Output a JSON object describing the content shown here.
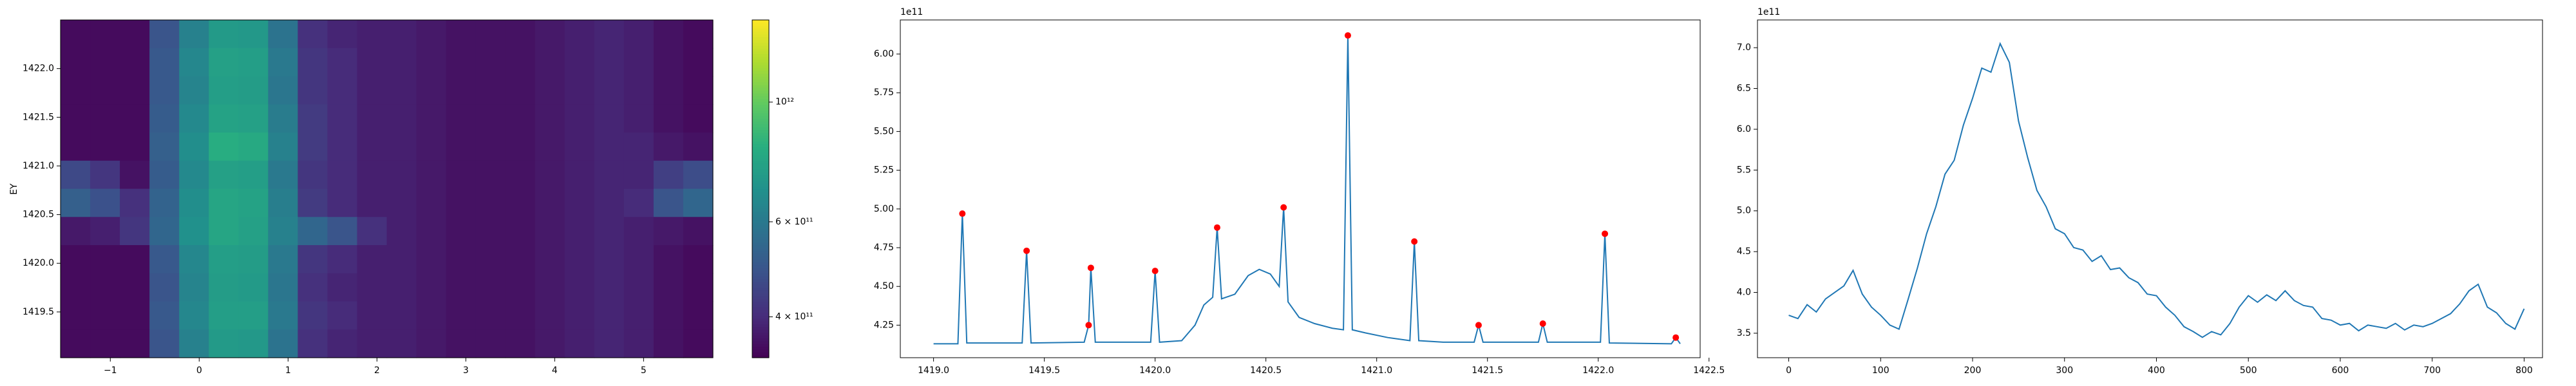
{
  "chart_data": [
    {
      "type": "heatmap",
      "ylabel": "EY",
      "colormap": "viridis",
      "log_color": true,
      "xlim": [
        -1.56,
        5.78
      ],
      "ylim": [
        1419.03,
        1422.5
      ],
      "clim": [
        336000000000.0,
        1420000000000.0
      ],
      "xticks": [
        {
          "value": -1,
          "label": "−1"
        },
        0,
        1,
        2,
        3,
        4,
        5
      ],
      "yticks": [
        {
          "value": 1419.5,
          "label": "1419.5"
        },
        {
          "value": 1420,
          "label": "1420.0"
        },
        {
          "value": 1420.5,
          "label": "1420.5"
        },
        {
          "value": 1421,
          "label": "1421.0"
        },
        {
          "value": 1421.5,
          "label": "1421.5"
        },
        {
          "value": 1422,
          "label": "1422.0"
        }
      ],
      "cticks": [
        {
          "value": 400000000000.0,
          "label": "4 × 10¹¹"
        },
        {
          "value": 600000000000.0,
          "label": "6 × 10¹¹"
        },
        {
          "value": 1000000000000.0,
          "label": "10¹²"
        }
      ],
      "z": [
        [
          350000000000.0,
          350000000000.0,
          350000000000.0,
          490000000000.0,
          630000000000.0,
          730000000000.0,
          720000000000.0,
          580000000000.0,
          410000000000.0,
          390000000000.0,
          380000000000.0,
          380000000000.0,
          370000000000.0,
          360000000000.0,
          360000000000.0,
          360000000000.0,
          370000000000.0,
          380000000000.0,
          390000000000.0,
          380000000000.0,
          360000000000.0,
          350000000000.0
        ],
        [
          350000000000.0,
          350000000000.0,
          350000000000.0,
          500000000000.0,
          650000000000.0,
          760000000000.0,
          750000000000.0,
          600000000000.0,
          420000000000.0,
          400000000000.0,
          380000000000.0,
          380000000000.0,
          370000000000.0,
          360000000000.0,
          360000000000.0,
          360000000000.0,
          370000000000.0,
          380000000000.0,
          390000000000.0,
          380000000000.0,
          360000000000.0,
          350000000000.0
        ],
        [
          350000000000.0,
          350000000000.0,
          350000000000.0,
          500000000000.0,
          640000000000.0,
          750000000000.0,
          740000000000.0,
          590000000000.0,
          420000000000.0,
          400000000000.0,
          380000000000.0,
          380000000000.0,
          370000000000.0,
          360000000000.0,
          360000000000.0,
          360000000000.0,
          370000000000.0,
          380000000000.0,
          390000000000.0,
          380000000000.0,
          360000000000.0,
          350000000000.0
        ],
        [
          350000000000.0,
          350000000000.0,
          350000000000.0,
          510000000000.0,
          660000000000.0,
          770000000000.0,
          760000000000.0,
          610000000000.0,
          430000000000.0,
          400000000000.0,
          380000000000.0,
          380000000000.0,
          370000000000.0,
          360000000000.0,
          360000000000.0,
          360000000000.0,
          370000000000.0,
          380000000000.0,
          390000000000.0,
          380000000000.0,
          360000000000.0,
          350000000000.0
        ],
        [
          350000000000.0,
          350000000000.0,
          350000000000.0,
          520000000000.0,
          680000000000.0,
          820000000000.0,
          800000000000.0,
          630000000000.0,
          430000000000.0,
          400000000000.0,
          380000000000.0,
          380000000000.0,
          370000000000.0,
          360000000000.0,
          360000000000.0,
          360000000000.0,
          370000000000.0,
          380000000000.0,
          390000000000.0,
          390000000000.0,
          370000000000.0,
          360000000000.0
        ],
        [
          460000000000.0,
          420000000000.0,
          360000000000.0,
          510000000000.0,
          660000000000.0,
          760000000000.0,
          750000000000.0,
          600000000000.0,
          420000000000.0,
          400000000000.0,
          380000000000.0,
          380000000000.0,
          370000000000.0,
          360000000000.0,
          360000000000.0,
          360000000000.0,
          370000000000.0,
          380000000000.0,
          390000000000.0,
          390000000000.0,
          440000000000.0,
          470000000000.0
        ],
        [
          520000000000.0,
          480000000000.0,
          410000000000.0,
          530000000000.0,
          680000000000.0,
          780000000000.0,
          770000000000.0,
          620000000000.0,
          430000000000.0,
          400000000000.0,
          380000000000.0,
          380000000000.0,
          370000000000.0,
          360000000000.0,
          360000000000.0,
          360000000000.0,
          370000000000.0,
          380000000000.0,
          390000000000.0,
          400000000000.0,
          490000000000.0,
          540000000000.0
        ],
        [
          370000000000.0,
          380000000000.0,
          420000000000.0,
          540000000000.0,
          690000000000.0,
          780000000000.0,
          760000000000.0,
          630000000000.0,
          540000000000.0,
          490000000000.0,
          410000000000.0,
          380000000000.0,
          370000000000.0,
          360000000000.0,
          360000000000.0,
          360000000000.0,
          370000000000.0,
          380000000000.0,
          390000000000.0,
          380000000000.0,
          370000000000.0,
          360000000000.0
        ],
        [
          350000000000.0,
          350000000000.0,
          350000000000.0,
          500000000000.0,
          650000000000.0,
          750000000000.0,
          740000000000.0,
          600000000000.0,
          420000000000.0,
          400000000000.0,
          380000000000.0,
          380000000000.0,
          370000000000.0,
          360000000000.0,
          360000000000.0,
          360000000000.0,
          370000000000.0,
          380000000000.0,
          390000000000.0,
          380000000000.0,
          360000000000.0,
          350000000000.0
        ],
        [
          350000000000.0,
          350000000000.0,
          350000000000.0,
          490000000000.0,
          640000000000.0,
          740000000000.0,
          730000000000.0,
          590000000000.0,
          410000000000.0,
          390000000000.0,
          380000000000.0,
          380000000000.0,
          370000000000.0,
          360000000000.0,
          360000000000.0,
          360000000000.0,
          370000000000.0,
          380000000000.0,
          390000000000.0,
          380000000000.0,
          360000000000.0,
          350000000000.0
        ],
        [
          350000000000.0,
          350000000000.0,
          350000000000.0,
          500000000000.0,
          650000000000.0,
          750000000000.0,
          750000000000.0,
          600000000000.0,
          420000000000.0,
          400000000000.0,
          380000000000.0,
          380000000000.0,
          370000000000.0,
          360000000000.0,
          360000000000.0,
          360000000000.0,
          370000000000.0,
          380000000000.0,
          390000000000.0,
          380000000000.0,
          360000000000.0,
          350000000000.0
        ],
        [
          350000000000.0,
          350000000000.0,
          350000000000.0,
          490000000000.0,
          630000000000.0,
          730000000000.0,
          720000000000.0,
          580000000000.0,
          410000000000.0,
          390000000000.0,
          380000000000.0,
          380000000000.0,
          370000000000.0,
          360000000000.0,
          360000000000.0,
          360000000000.0,
          370000000000.0,
          380000000000.0,
          390000000000.0,
          380000000000.0,
          360000000000.0,
          350000000000.0
        ]
      ]
    },
    {
      "type": "line",
      "offset_text": "1e11",
      "xlim": [
        1418.85,
        1422.46
      ],
      "ylim": [
        4.04,
        6.22
      ],
      "xticks": [
        {
          "value": 1419,
          "label": "1419.0"
        },
        1419.5,
        {
          "value": 1420,
          "label": "1420.0"
        },
        1420.5,
        {
          "value": 1421,
          "label": "1421.0"
        },
        1421.5,
        {
          "value": 1422,
          "label": "1422.0"
        },
        1422.5
      ],
      "yticks": [
        4.25,
        {
          "value": 4.5,
          "label": "4.50"
        },
        4.75,
        {
          "value": 5,
          "label": "5.00"
        },
        5.25,
        {
          "value": 5.5,
          "label": "5.50"
        },
        5.75,
        {
          "value": 6,
          "label": "6.00"
        }
      ],
      "x": [
        1419.0,
        1419.11,
        1419.13,
        1419.15,
        1419.4,
        1419.42,
        1419.44,
        1419.68,
        1419.7,
        1419.71,
        1419.73,
        1419.98,
        1420.0,
        1420.02,
        1420.12,
        1420.18,
        1420.22,
        1420.26,
        1420.28,
        1420.3,
        1420.36,
        1420.42,
        1420.47,
        1420.52,
        1420.56,
        1420.58,
        1420.6,
        1420.65,
        1420.72,
        1420.8,
        1420.85,
        1420.87,
        1420.89,
        1420.95,
        1421.05,
        1421.15,
        1421.17,
        1421.19,
        1421.3,
        1421.44,
        1421.46,
        1421.48,
        1421.73,
        1421.75,
        1421.77,
        1422.01,
        1422.03,
        1422.05,
        1422.33,
        1422.35,
        1422.37
      ],
      "series": [
        {
          "color": "#1f77b4",
          "values": [
            4.13,
            4.13,
            4.97,
            4.135,
            4.135,
            4.73,
            4.135,
            4.14,
            4.25,
            4.62,
            4.14,
            4.14,
            4.6,
            4.14,
            4.15,
            4.25,
            4.38,
            4.43,
            4.88,
            4.42,
            4.45,
            4.57,
            4.61,
            4.58,
            4.5,
            5.01,
            4.4,
            4.3,
            4.26,
            4.23,
            4.22,
            6.12,
            4.22,
            4.2,
            4.17,
            4.15,
            4.79,
            4.15,
            4.14,
            4.14,
            4.25,
            4.14,
            4.14,
            4.26,
            4.14,
            4.14,
            4.84,
            4.135,
            4.13,
            4.17,
            4.13
          ]
        }
      ],
      "markers": {
        "color": "red",
        "x": [
          1419.13,
          1419.42,
          1419.7,
          1419.71,
          1420.0,
          1420.28,
          1420.58,
          1420.87,
          1421.17,
          1421.46,
          1421.75,
          1422.03,
          1422.35
        ],
        "values": [
          4.97,
          4.73,
          4.25,
          4.62,
          4.6,
          4.88,
          5.01,
          6.12,
          4.79,
          4.25,
          4.26,
          4.84,
          4.17
        ]
      }
    },
    {
      "type": "line",
      "offset_text": "1e11",
      "xlim": [
        -34,
        820
      ],
      "ylim": [
        3.2,
        7.34
      ],
      "xticks": [
        0,
        100,
        200,
        300,
        400,
        500,
        600,
        700,
        800
      ],
      "yticks": [
        3.5,
        {
          "value": 4,
          "label": "4.0"
        },
        4.5,
        {
          "value": 5,
          "label": "5.0"
        },
        5.5,
        {
          "value": 6,
          "label": "6.0"
        },
        6.5,
        {
          "value": 7,
          "label": "7.0"
        }
      ],
      "x": [
        0,
        10,
        20,
        30,
        40,
        50,
        60,
        70,
        80,
        90,
        100,
        110,
        120,
        130,
        140,
        150,
        160,
        170,
        180,
        190,
        200,
        210,
        220,
        230,
        240,
        250,
        260,
        270,
        280,
        290,
        300,
        310,
        320,
        330,
        340,
        350,
        360,
        370,
        380,
        390,
        400,
        410,
        420,
        430,
        440,
        450,
        460,
        470,
        480,
        490,
        500,
        510,
        520,
        530,
        540,
        550,
        560,
        570,
        580,
        590,
        600,
        610,
        620,
        630,
        640,
        650,
        660,
        670,
        680,
        690,
        700,
        710,
        720,
        730,
        740,
        750,
        760,
        770,
        780,
        790,
        800
      ],
      "series": [
        {
          "color": "#1f77b4",
          "values": [
            3.72,
            3.68,
            3.85,
            3.76,
            3.92,
            4.0,
            4.08,
            4.27,
            3.98,
            3.82,
            3.72,
            3.6,
            3.55,
            3.92,
            4.3,
            4.72,
            5.05,
            5.45,
            5.62,
            6.05,
            6.38,
            6.75,
            6.7,
            7.05,
            6.82,
            6.1,
            5.65,
            5.25,
            5.05,
            4.78,
            4.72,
            4.55,
            4.52,
            4.38,
            4.45,
            4.28,
            4.3,
            4.18,
            4.12,
            3.98,
            3.96,
            3.82,
            3.72,
            3.58,
            3.52,
            3.45,
            3.52,
            3.48,
            3.62,
            3.82,
            3.96,
            3.88,
            3.97,
            3.9,
            4.02,
            3.9,
            3.84,
            3.82,
            3.68,
            3.66,
            3.6,
            3.62,
            3.53,
            3.6,
            3.58,
            3.56,
            3.62,
            3.54,
            3.6,
            3.58,
            3.62,
            3.68,
            3.74,
            3.86,
            4.02,
            4.1,
            3.82,
            3.75,
            3.62,
            3.55,
            3.8
          ]
        }
      ]
    }
  ]
}
